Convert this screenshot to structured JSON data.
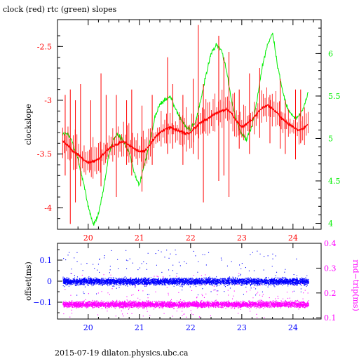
{
  "title": "clock (red) rtc (green) slopes",
  "footer": "2015-07-19 dilaton.physics.ubc.ca",
  "colors": {
    "clock": "#ff0000",
    "rtc": "#00ee00",
    "offset": "#0000ff",
    "rndtrip": "#ff00ff",
    "frame": "#000000"
  },
  "chart_data": [
    {
      "type": "line",
      "title": "clock (red) rtc (green) slopes",
      "ylabel": "clockslope",
      "ylabel_right": "",
      "xlim": [
        19.4,
        24.55
      ],
      "ylim": [
        -4.2,
        -2.25
      ],
      "ylim_right": [
        3.93,
        6.4
      ],
      "x_ticks": [
        "20",
        "21",
        "22",
        "23",
        "24"
      ],
      "y_ticks_left": [
        "-2.5",
        "-3",
        "-3.5",
        "-4"
      ],
      "y_ticks_right": [
        "6",
        "5.5",
        "5",
        "4.5",
        "4"
      ],
      "series": [
        {
          "name": "clock",
          "axis": "left",
          "x": [
            19.5,
            19.6,
            19.7,
            19.8,
            19.9,
            20.0,
            20.1,
            20.2,
            20.3,
            20.4,
            20.5,
            20.6,
            20.7,
            20.8,
            20.9,
            21.0,
            21.1,
            21.2,
            21.3,
            21.4,
            21.5,
            21.6,
            21.7,
            21.8,
            21.9,
            22.0,
            22.1,
            22.2,
            22.3,
            22.4,
            22.5,
            22.6,
            22.7,
            22.8,
            22.9,
            23.0,
            23.1,
            23.2,
            23.3,
            23.4,
            23.5,
            23.6,
            23.7,
            23.8,
            23.9,
            24.0,
            24.1,
            24.2,
            24.3
          ],
          "y": [
            -3.38,
            -3.42,
            -3.48,
            -3.5,
            -3.55,
            -3.58,
            -3.57,
            -3.55,
            -3.5,
            -3.45,
            -3.42,
            -3.4,
            -3.38,
            -3.42,
            -3.45,
            -3.48,
            -3.47,
            -3.42,
            -3.35,
            -3.3,
            -3.27,
            -3.25,
            -3.27,
            -3.29,
            -3.31,
            -3.3,
            -3.25,
            -3.2,
            -3.18,
            -3.15,
            -3.12,
            -3.1,
            -3.08,
            -3.12,
            -3.2,
            -3.25,
            -3.22,
            -3.18,
            -3.12,
            -3.07,
            -3.05,
            -3.08,
            -3.12,
            -3.18,
            -3.22,
            -3.25,
            -3.28,
            -3.26,
            -3.22
          ]
        },
        {
          "name": "rtc",
          "axis": "right",
          "x": [
            19.5,
            19.6,
            19.7,
            19.8,
            19.9,
            20.0,
            20.1,
            20.2,
            20.3,
            20.4,
            20.5,
            20.6,
            20.7,
            20.8,
            20.9,
            21.0,
            21.1,
            21.2,
            21.3,
            21.4,
            21.5,
            21.6,
            21.7,
            21.8,
            21.9,
            22.0,
            22.1,
            22.2,
            22.3,
            22.4,
            22.5,
            22.6,
            22.7,
            22.8,
            22.9,
            23.0,
            23.1,
            23.2,
            23.3,
            23.4,
            23.5,
            23.6,
            23.7,
            23.8,
            23.9,
            24.0,
            24.1,
            24.2,
            24.3
          ],
          "y": [
            5.05,
            5.05,
            4.95,
            4.75,
            4.5,
            4.2,
            3.98,
            4.1,
            4.4,
            4.8,
            5.0,
            5.05,
            4.95,
            4.85,
            4.6,
            4.45,
            4.7,
            4.95,
            5.25,
            5.4,
            5.45,
            5.5,
            5.35,
            5.25,
            5.15,
            5.1,
            5.2,
            5.45,
            5.75,
            6.0,
            6.1,
            6.05,
            5.8,
            5.45,
            5.2,
            5.05,
            5.0,
            5.15,
            5.45,
            5.85,
            6.1,
            6.25,
            5.85,
            5.55,
            5.35,
            5.25,
            5.25,
            5.35,
            5.55
          ]
        }
      ],
      "spikes": {
        "x": [
          19.55,
          19.65,
          19.75,
          19.85,
          20.05,
          20.25,
          20.35,
          20.55,
          20.75,
          20.85,
          21.05,
          21.25,
          21.55,
          21.65,
          21.85,
          22.05,
          22.15,
          22.25,
          22.55,
          22.65,
          22.75,
          22.95,
          23.15,
          23.35,
          23.55,
          23.75,
          23.85,
          24.05,
          24.15
        ],
        "low": [
          -3.7,
          -4.15,
          -3.95,
          -3.8,
          -3.65,
          -3.8,
          -3.55,
          -3.9,
          -3.6,
          -3.7,
          -3.85,
          -3.6,
          -3.5,
          -3.45,
          -3.6,
          -3.5,
          -3.55,
          -3.95,
          -3.75,
          -3.7,
          -3.9,
          -3.45,
          -3.5,
          -3.35,
          -3.4,
          -3.45,
          -3.5,
          -3.55,
          -3.4
        ],
        "high": [
          -2.95,
          -2.9,
          -3.0,
          -2.85,
          -3.0,
          -2.75,
          -2.95,
          -2.95,
          -3.0,
          -2.9,
          -3.05,
          -2.95,
          -2.6,
          -2.85,
          -2.95,
          -2.8,
          -2.3,
          -2.85,
          -2.4,
          -2.6,
          -2.55,
          -2.9,
          -2.75,
          -2.7,
          -2.95,
          -2.8,
          -3.0,
          -2.9,
          -2.9
        ]
      }
    },
    {
      "type": "scatter",
      "ylabel": "offset(ms)",
      "ylabel_right": "rnd−trip(ms)",
      "xlim": [
        19.4,
        24.55
      ],
      "ylim": [
        -0.18,
        0.18
      ],
      "ylim_right": [
        0.095,
        0.4
      ],
      "x_ticks": [
        "20",
        "21",
        "22",
        "23",
        "24"
      ],
      "y_ticks_left": [
        "0.1",
        "0",
        "−0.1"
      ],
      "y_ticks_right": [
        "0.4",
        "0.3",
        "0.2",
        "0.1"
      ],
      "series": [
        {
          "name": "offset",
          "axis": "left",
          "x_range": [
            19.5,
            24.3
          ],
          "center": 0.0,
          "spread": 0.02
        },
        {
          "name": "rnd-trip",
          "axis": "right",
          "x_range": [
            19.5,
            24.3
          ],
          "center": 0.155,
          "spread": 0.015
        }
      ]
    }
  ]
}
